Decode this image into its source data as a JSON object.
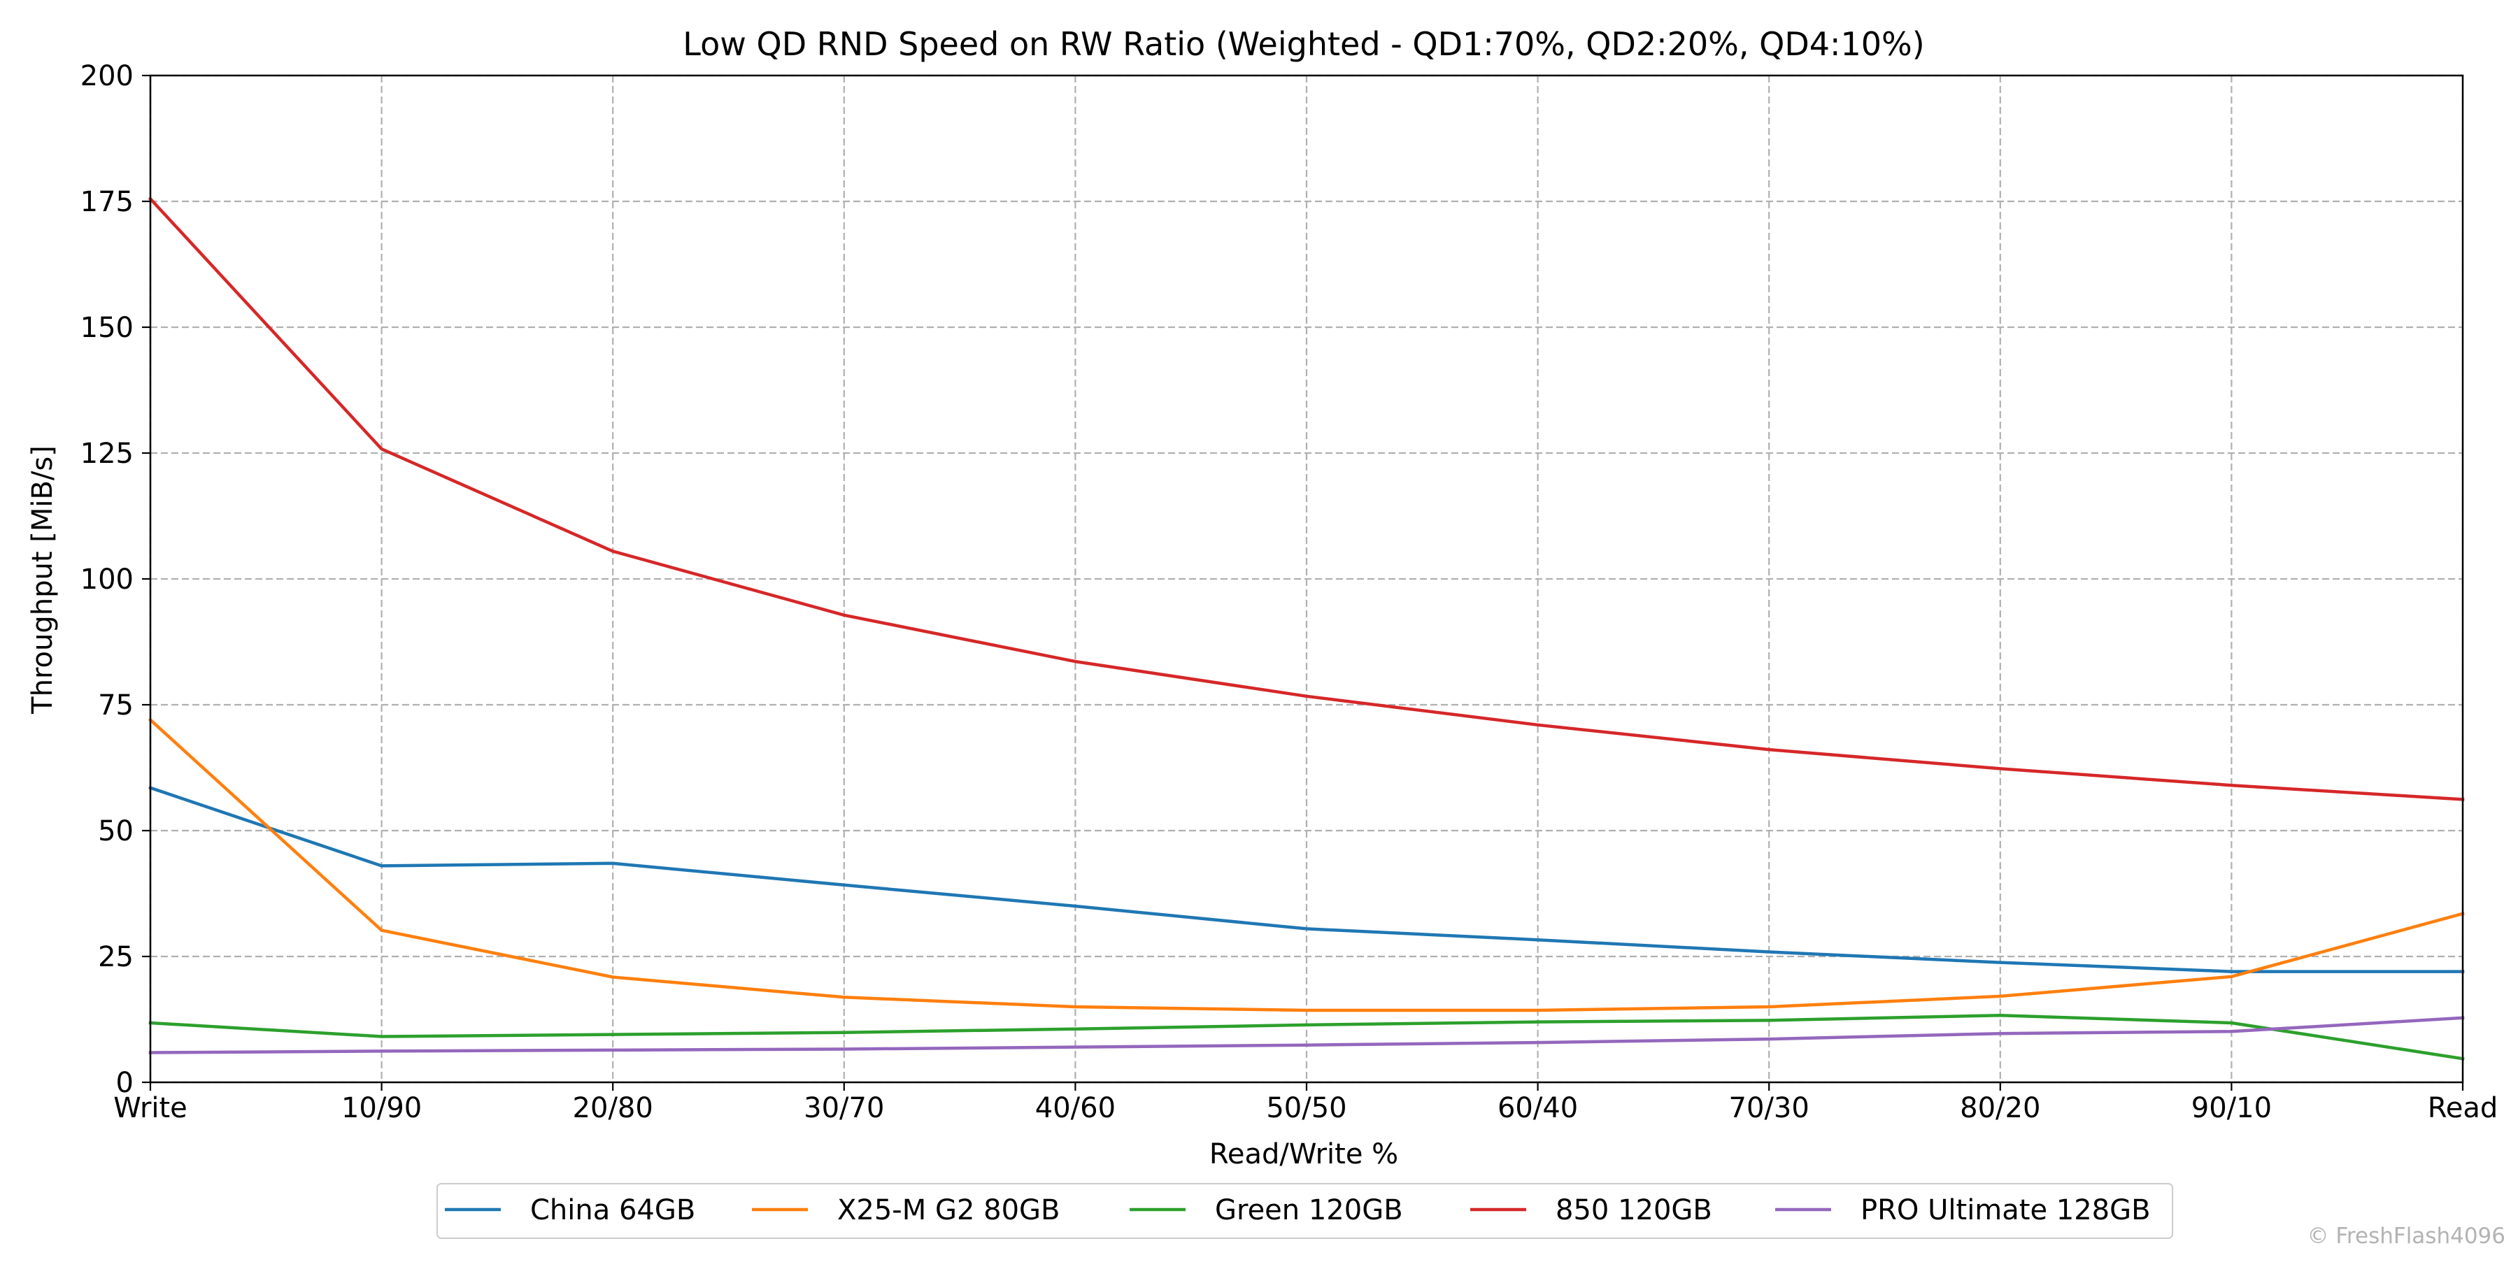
{
  "chart_data": {
    "type": "line",
    "title": "Low QD RND Speed on RW Ratio (Weighted - QD1:70%, QD2:20%, QD4:10%)",
    "xlabel": "Read/Write %",
    "ylabel": "Throughput [MiB/s]",
    "categories": [
      "Write",
      "10/90",
      "20/80",
      "30/70",
      "40/60",
      "50/50",
      "60/40",
      "70/30",
      "80/20",
      "90/10",
      "Read"
    ],
    "ylim": [
      0,
      200
    ],
    "yticks": [
      0,
      25,
      50,
      75,
      100,
      125,
      150,
      175,
      200
    ],
    "grid": true,
    "legend_position": "bottom-center",
    "series": [
      {
        "name": "China 64GB",
        "color": "#1f77b4",
        "values": [
          58.5,
          43.0,
          43.5,
          39.2,
          35.0,
          30.5,
          28.3,
          25.9,
          23.8,
          22.0,
          22.0
        ]
      },
      {
        "name": "X25-M G2 80GB",
        "color": "#ff7f0e",
        "values": [
          72.0,
          30.2,
          20.9,
          16.9,
          15.0,
          14.3,
          14.3,
          15.0,
          17.1,
          21.0,
          33.5
        ]
      },
      {
        "name": "Green 120GB",
        "color": "#2ca02c",
        "values": [
          11.8,
          9.1,
          9.5,
          9.9,
          10.6,
          11.4,
          12.0,
          12.3,
          13.3,
          11.8,
          4.7
        ]
      },
      {
        "name": "850 120GB",
        "color": "#d62728",
        "values": [
          175.5,
          125.8,
          105.5,
          92.8,
          83.6,
          76.7,
          71.0,
          66.1,
          62.3,
          59.0,
          56.2
        ]
      },
      {
        "name": "PRO Ultimate 128GB",
        "color": "#9467bd",
        "values": [
          5.9,
          6.2,
          6.4,
          6.6,
          7.0,
          7.4,
          7.9,
          8.6,
          9.7,
          10.1,
          12.8
        ]
      }
    ]
  },
  "watermark": "© FreshFlash4096"
}
